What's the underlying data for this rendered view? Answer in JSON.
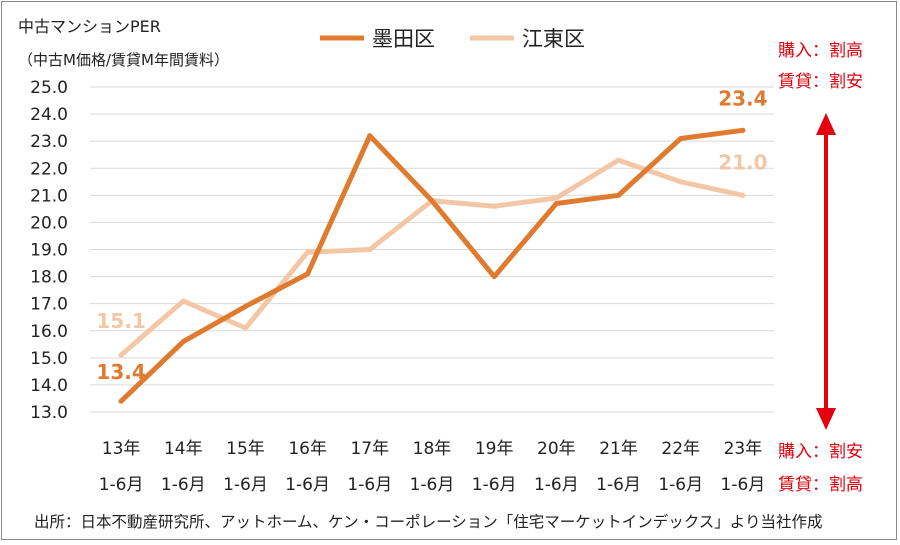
{
  "chart_data": {
    "type": "line",
    "title_line1": "中古マンションPER",
    "title_line2": "（中古M価格/賃貸M年間賃料）",
    "categories": [
      "13年",
      "14年",
      "15年",
      "16年",
      "17年",
      "18年",
      "19年",
      "20年",
      "21年",
      "22年",
      "23年"
    ],
    "category_sub": "1-6月",
    "ylim": [
      13.0,
      25.0
    ],
    "yticks": [
      "13.0",
      "14.0",
      "15.0",
      "16.0",
      "17.0",
      "18.0",
      "19.0",
      "20.0",
      "21.0",
      "22.0",
      "23.0",
      "24.0",
      "25.0"
    ],
    "series": [
      {
        "name": "墨田区",
        "color": "#E07A2F",
        "values": [
          13.4,
          15.6,
          16.9,
          18.1,
          23.2,
          20.8,
          18.0,
          20.7,
          21.0,
          23.1,
          23.4
        ]
      },
      {
        "name": "江東区",
        "color": "#F3C7A6",
        "values": [
          15.1,
          17.1,
          16.1,
          18.9,
          19.0,
          20.8,
          20.6,
          20.9,
          22.3,
          21.5,
          21.0
        ]
      }
    ],
    "data_labels": [
      {
        "series": 0,
        "index": 0,
        "text": "13.4"
      },
      {
        "series": 0,
        "index": 10,
        "text": "23.4"
      },
      {
        "series": 1,
        "index": 0,
        "text": "15.1"
      },
      {
        "series": 1,
        "index": 10,
        "text": "21.0"
      }
    ],
    "grid": true,
    "legend_position": "top-center"
  },
  "annotations": {
    "top_line1": "購入：割高",
    "top_line2": "賃貸：割安",
    "bottom_line1": "購入：割安",
    "bottom_line2": "賃貸：割高",
    "arrow_color": "#E3000F"
  },
  "source": "出所：日本不動産研究所、アットホーム、ケン・コーポレーション「住宅マーケットインデックス」より当社作成"
}
